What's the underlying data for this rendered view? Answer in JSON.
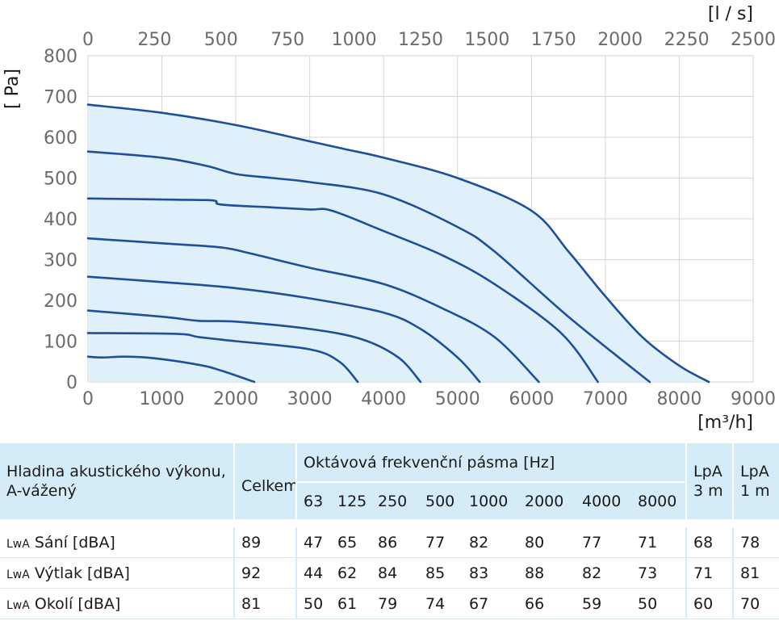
{
  "chart_data": {
    "type": "line",
    "x_unit_bottom": "[m³/h]",
    "x_unit_top": "[l / s]",
    "y_unit": "[ Pa]",
    "x_ticks_bottom": [
      "0",
      "1000",
      "2000",
      "3000",
      "4000",
      "5000",
      "6000",
      "7000",
      "8000",
      "9000"
    ],
    "x_ticks_top": [
      "0",
      "250",
      "500",
      "750",
      "1000",
      "1250",
      "1500",
      "1750",
      "2000",
      "2250",
      "2500"
    ],
    "y_ticks": [
      "0",
      "100",
      "200",
      "300",
      "400",
      "500",
      "600",
      "700",
      "800"
    ],
    "xlim": [
      0,
      9000
    ],
    "ylim": [
      0,
      800
    ],
    "grid": true,
    "fill_color": "#dff0fa",
    "line_color": "#1f4e9a",
    "series": [
      {
        "x": [
          0,
          1000,
          2000,
          3000,
          3500,
          4000,
          5000,
          6000,
          6500,
          7000,
          7500,
          8000,
          8400
        ],
        "y": [
          680,
          660,
          630,
          590,
          570,
          550,
          500,
          420,
          320,
          210,
          110,
          40,
          0
        ]
      },
      {
        "x": [
          0,
          1000,
          1600,
          2000,
          2500,
          3000,
          4000,
          5000,
          5500,
          6500,
          7600
        ],
        "y": [
          565,
          550,
          530,
          510,
          500,
          490,
          460,
          380,
          320,
          160,
          0
        ]
      },
      {
        "x": [
          0,
          1200,
          1700,
          1800,
          2500,
          3000,
          3300,
          4000,
          4800,
          5500,
          6400,
          6900
        ],
        "y": [
          450,
          447,
          445,
          435,
          428,
          423,
          420,
          370,
          310,
          240,
          120,
          0
        ]
      },
      {
        "x": [
          0,
          1000,
          1800,
          2200,
          3000,
          4000,
          4800,
          5500,
          6100
        ],
        "y": [
          352,
          340,
          330,
          315,
          280,
          240,
          180,
          110,
          0
        ]
      },
      {
        "x": [
          0,
          1000,
          2000,
          3000,
          4000,
          4500,
          5000,
          5300
        ],
        "y": [
          258,
          245,
          230,
          205,
          170,
          130,
          60,
          0
        ]
      },
      {
        "x": [
          0,
          1000,
          1500,
          2000,
          3000,
          3700,
          4200,
          4500
        ],
        "y": [
          175,
          160,
          150,
          148,
          130,
          105,
          60,
          0
        ]
      },
      {
        "x": [
          0,
          1200,
          1500,
          2000,
          3000,
          3400,
          3650
        ],
        "y": [
          120,
          118,
          110,
          100,
          80,
          50,
          0
        ]
      },
      {
        "x": [
          0,
          200,
          500,
          900,
          1500,
          1800,
          2250
        ],
        "y": [
          62,
          60,
          62,
          58,
          42,
          28,
          0
        ]
      }
    ]
  },
  "table": {
    "header": {
      "label": "Hladina akustického výkonu, A-vážený",
      "total": "Celkem",
      "bands_title": "Oktávová frekvenční pásma [Hz]",
      "bands": [
        "63",
        "125",
        "250",
        "500",
        "1000",
        "2000",
        "4000",
        "8000"
      ],
      "lpa3": "LpA 3 m",
      "lpa1": "LpA 1 m"
    },
    "rows": [
      {
        "prefix": "LwA",
        "label": "Sání [dBA]",
        "total": "89",
        "bands": [
          "47",
          "65",
          "86",
          "77",
          "82",
          "80",
          "77",
          "71"
        ],
        "lpa3": "68",
        "lpa1": "78"
      },
      {
        "prefix": "LwA",
        "label": "Výtlak [dBA]",
        "total": "92",
        "bands": [
          "44",
          "62",
          "84",
          "85",
          "83",
          "88",
          "82",
          "73"
        ],
        "lpa3": "71",
        "lpa1": "81"
      },
      {
        "prefix": "LwA",
        "label": "Okolí [dBA]",
        "total": "81",
        "bands": [
          "50",
          "61",
          "79",
          "74",
          "67",
          "66",
          "59",
          "50"
        ],
        "lpa3": "60",
        "lpa1": "70"
      }
    ]
  }
}
